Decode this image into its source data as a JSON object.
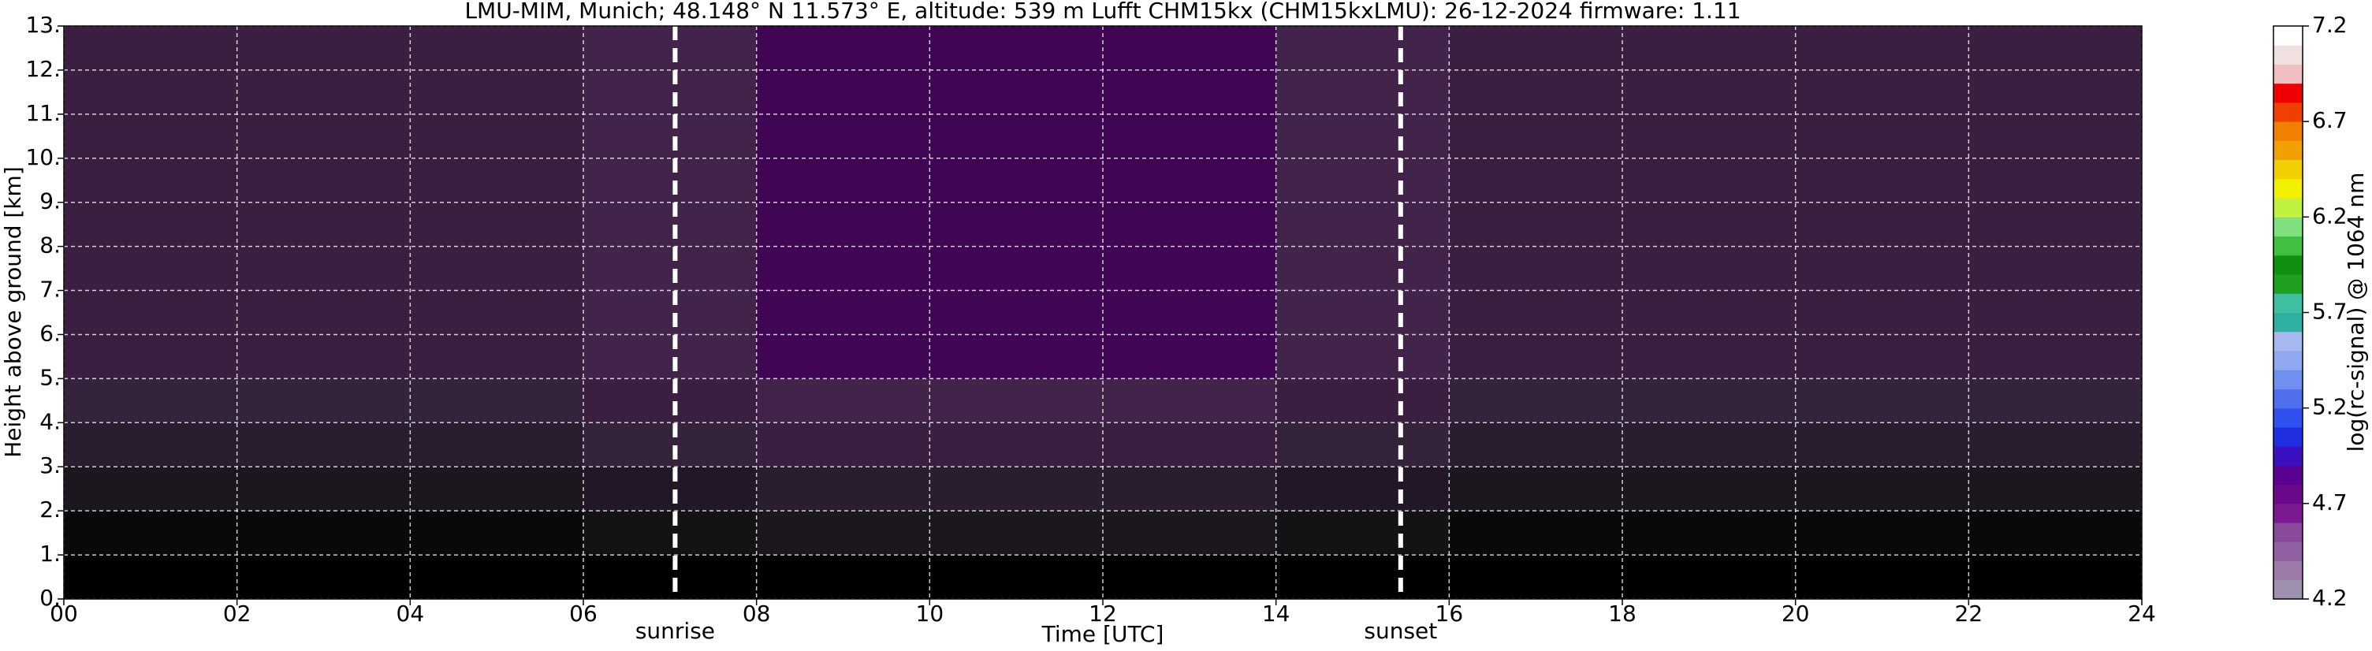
{
  "chart_data": {
    "type": "heatmap",
    "title": "LMU-MIM, Munich; 48.148° N 11.573° E, altitude: 539 m    Lufft CHM15kx (CHM15kxLMU): 26-12-2024    firmware: 1.11",
    "x_label": "Time [UTC]",
    "y_label": "Height above ground [km]",
    "xlim": [
      0,
      24
    ],
    "ylim": [
      0,
      13
    ],
    "xticks": [
      {
        "value": 0,
        "label": "00"
      },
      {
        "value": 2,
        "label": "02"
      },
      {
        "value": 4,
        "label": "04"
      },
      {
        "value": 6,
        "label": "06"
      },
      {
        "value": 8,
        "label": "08"
      },
      {
        "value": 10,
        "label": "10"
      },
      {
        "value": 12,
        "label": "12"
      },
      {
        "value": 14,
        "label": "14"
      },
      {
        "value": 16,
        "label": "16"
      },
      {
        "value": 18,
        "label": "18"
      },
      {
        "value": 20,
        "label": "20"
      },
      {
        "value": 22,
        "label": "22"
      },
      {
        "value": 24,
        "label": "24"
      }
    ],
    "yticks": [
      {
        "value": 0,
        "label": "0."
      },
      {
        "value": 1,
        "label": "1."
      },
      {
        "value": 2,
        "label": "2."
      },
      {
        "value": 3,
        "label": "3."
      },
      {
        "value": 4,
        "label": "4."
      },
      {
        "value": 5,
        "label": "5."
      },
      {
        "value": 6,
        "label": "6."
      },
      {
        "value": 7,
        "label": "7."
      },
      {
        "value": 8,
        "label": "8."
      },
      {
        "value": 9,
        "label": "9."
      },
      {
        "value": 10,
        "label": "10."
      },
      {
        "value": 11,
        "label": "11."
      },
      {
        "value": 12,
        "label": "12."
      },
      {
        "value": 13,
        "label": "13."
      }
    ],
    "grid": true,
    "x_bins": [
      0,
      2,
      4,
      6,
      8,
      10,
      12,
      14,
      16,
      18,
      20,
      22,
      24
    ],
    "y_bins": [
      0,
      1,
      2,
      3,
      4,
      5,
      6,
      7,
      8,
      9,
      10,
      11,
      12,
      13
    ],
    "z": [
      [
        4.2,
        4.2,
        4.2,
        4.2,
        4.2,
        4.2,
        4.2,
        4.2,
        4.2,
        4.2,
        4.2,
        4.2
      ],
      [
        4.25,
        4.25,
        4.25,
        4.3,
        4.35,
        4.35,
        4.35,
        4.3,
        4.25,
        4.25,
        4.25,
        4.25
      ],
      [
        4.35,
        4.35,
        4.35,
        4.4,
        4.45,
        4.45,
        4.45,
        4.4,
        4.35,
        4.35,
        4.35,
        4.35
      ],
      [
        4.45,
        4.45,
        4.45,
        4.5,
        4.55,
        4.55,
        4.55,
        4.5,
        4.45,
        4.45,
        4.45,
        4.45
      ],
      [
        4.5,
        4.5,
        4.5,
        4.55,
        4.6,
        4.6,
        4.6,
        4.55,
        4.5,
        4.5,
        4.5,
        4.5
      ],
      [
        4.55,
        4.55,
        4.55,
        4.6,
        4.7,
        4.7,
        4.7,
        4.6,
        4.55,
        4.55,
        4.55,
        4.55
      ],
      [
        4.55,
        4.55,
        4.55,
        4.6,
        4.7,
        4.7,
        4.7,
        4.6,
        4.55,
        4.55,
        4.55,
        4.55
      ],
      [
        4.55,
        4.55,
        4.55,
        4.6,
        4.7,
        4.7,
        4.7,
        4.6,
        4.55,
        4.55,
        4.55,
        4.55
      ],
      [
        4.55,
        4.55,
        4.55,
        4.6,
        4.7,
        4.7,
        4.7,
        4.6,
        4.55,
        4.55,
        4.55,
        4.55
      ],
      [
        4.55,
        4.55,
        4.55,
        4.6,
        4.7,
        4.7,
        4.7,
        4.6,
        4.55,
        4.55,
        4.55,
        4.55
      ],
      [
        4.55,
        4.55,
        4.55,
        4.6,
        4.7,
        4.7,
        4.7,
        4.6,
        4.55,
        4.55,
        4.55,
        4.55
      ],
      [
        4.55,
        4.55,
        4.55,
        4.6,
        4.7,
        4.7,
        4.7,
        4.6,
        4.55,
        4.55,
        4.55,
        4.55
      ],
      [
        4.55,
        4.55,
        4.55,
        4.6,
        4.7,
        4.7,
        4.7,
        4.6,
        4.55,
        4.55,
        4.55,
        4.55
      ]
    ],
    "annotations": [
      {
        "text": "sunrise",
        "x": 7.06
      },
      {
        "text": "sunset",
        "x": 15.44
      }
    ],
    "colorbar": {
      "label": "log(rc-signal) @ 1064 nm",
      "lim": [
        4.2,
        7.2
      ],
      "ticks": [
        4.2,
        4.7,
        5.2,
        5.7,
        6.2,
        6.7,
        7.2
      ],
      "colors": [
        "#a090b0",
        "#9c7aa8",
        "#9060a0",
        "#8a4a9a",
        "#7a1a90",
        "#6a0a8a",
        "#5a0090",
        "#3a10c0",
        "#2030e0",
        "#3050f0",
        "#5070f0",
        "#7090f0",
        "#90a8f0",
        "#a8b8f0",
        "#30b0a0",
        "#40c0a0",
        "#20a020",
        "#109010",
        "#40c040",
        "#80e080",
        "#c0f040",
        "#f0f000",
        "#f0d000",
        "#f0a000",
        "#f08000",
        "#f04000",
        "#f00000",
        "#f0c0c0",
        "#f0e0e0",
        "#ffffff"
      ]
    }
  }
}
